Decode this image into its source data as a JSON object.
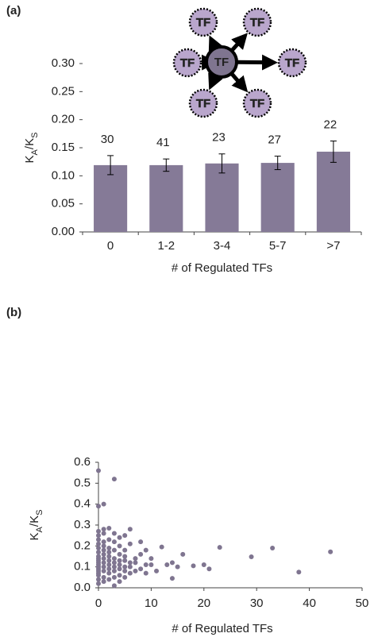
{
  "chart_data": [
    {
      "type": "bar",
      "panel": "(a)",
      "categories": [
        "0",
        "1-2",
        "3-4",
        "5-7",
        ">7"
      ],
      "values": [
        0.119,
        0.119,
        0.122,
        0.123,
        0.143
      ],
      "errors": [
        0.017,
        0.011,
        0.017,
        0.012,
        0.019
      ],
      "n_labels": [
        30,
        41,
        23,
        27,
        22
      ],
      "color": "#857a97",
      "xlabel": "# of Regulated TFs",
      "ylabel": [
        "K",
        "A",
        "/K",
        "S"
      ],
      "ylim": [
        0,
        0.3
      ],
      "yticks": [
        {
          "value": 0,
          "label": "0.00"
        },
        0.05,
        {
          "value": 0.1,
          "label": "0.10"
        },
        0.15,
        {
          "value": 0.2,
          "label": "0.20"
        },
        0.25,
        {
          "value": 0.3,
          "label": "0.30"
        }
      ],
      "inset": {
        "center": "TF",
        "targets": [
          "TF",
          "TF",
          "TF",
          "TF",
          "TF",
          "TF"
        ]
      }
    },
    {
      "type": "scatter",
      "panel": "(b)",
      "color": "#7f7590",
      "xlabel": "# of Regulated TFs",
      "ylabel": [
        "K",
        "A",
        "/K",
        "S"
      ],
      "xlim": [
        0,
        50
      ],
      "xticks": [
        0,
        10,
        20,
        30,
        40,
        50
      ],
      "ylim": [
        0,
        0.6
      ],
      "yticks": [
        {
          "value": 0,
          "label": "0.0"
        },
        0.1,
        0.2,
        0.3,
        0.4,
        0.5,
        0.6
      ],
      "x": [
        0,
        0,
        0,
        0,
        0,
        0,
        0,
        0,
        0,
        0,
        0,
        0,
        0,
        0,
        0,
        0,
        0,
        0,
        0,
        0,
        1,
        1,
        1,
        1,
        1,
        1,
        1,
        1,
        1,
        1,
        1,
        1,
        1,
        2,
        2,
        2,
        2,
        2,
        2,
        2,
        2,
        2,
        2,
        3,
        3,
        3,
        3,
        3,
        3,
        3,
        3,
        3,
        3,
        4,
        4,
        4,
        4,
        4,
        4,
        4,
        4,
        5,
        5,
        5,
        5,
        5,
        5,
        5,
        6,
        6,
        6,
        6,
        6,
        7,
        7,
        7,
        8,
        8,
        8,
        9,
        9,
        9,
        10,
        10,
        11,
        12,
        13,
        14,
        14,
        15,
        16,
        18,
        20,
        21,
        23,
        29,
        33,
        38,
        44
      ],
      "y": [
        0.02,
        0.04,
        0.06,
        0.07,
        0.08,
        0.09,
        0.1,
        0.11,
        0.12,
        0.13,
        0.14,
        0.15,
        0.17,
        0.19,
        0.21,
        0.23,
        0.25,
        0.27,
        0.39,
        0.56,
        0.03,
        0.05,
        0.08,
        0.1,
        0.12,
        0.14,
        0.16,
        0.18,
        0.2,
        0.22,
        0.26,
        0.28,
        0.4,
        0.04,
        0.07,
        0.09,
        0.11,
        0.13,
        0.15,
        0.17,
        0.19,
        0.23,
        0.285,
        0.01,
        0.05,
        0.08,
        0.1,
        0.12,
        0.14,
        0.18,
        0.22,
        0.26,
        0.52,
        0.03,
        0.06,
        0.09,
        0.11,
        0.13,
        0.16,
        0.2,
        0.24,
        0.05,
        0.08,
        0.1,
        0.13,
        0.15,
        0.18,
        0.25,
        0.07,
        0.1,
        0.12,
        0.21,
        0.28,
        0.08,
        0.12,
        0.14,
        0.09,
        0.16,
        0.22,
        0.07,
        0.11,
        0.18,
        0.11,
        0.14,
        0.08,
        0.195,
        0.11,
        0.12,
        0.045,
        0.1,
        0.16,
        0.105,
        0.11,
        0.09,
        0.193,
        0.148,
        0.19,
        0.075,
        0.172
      ]
    }
  ]
}
